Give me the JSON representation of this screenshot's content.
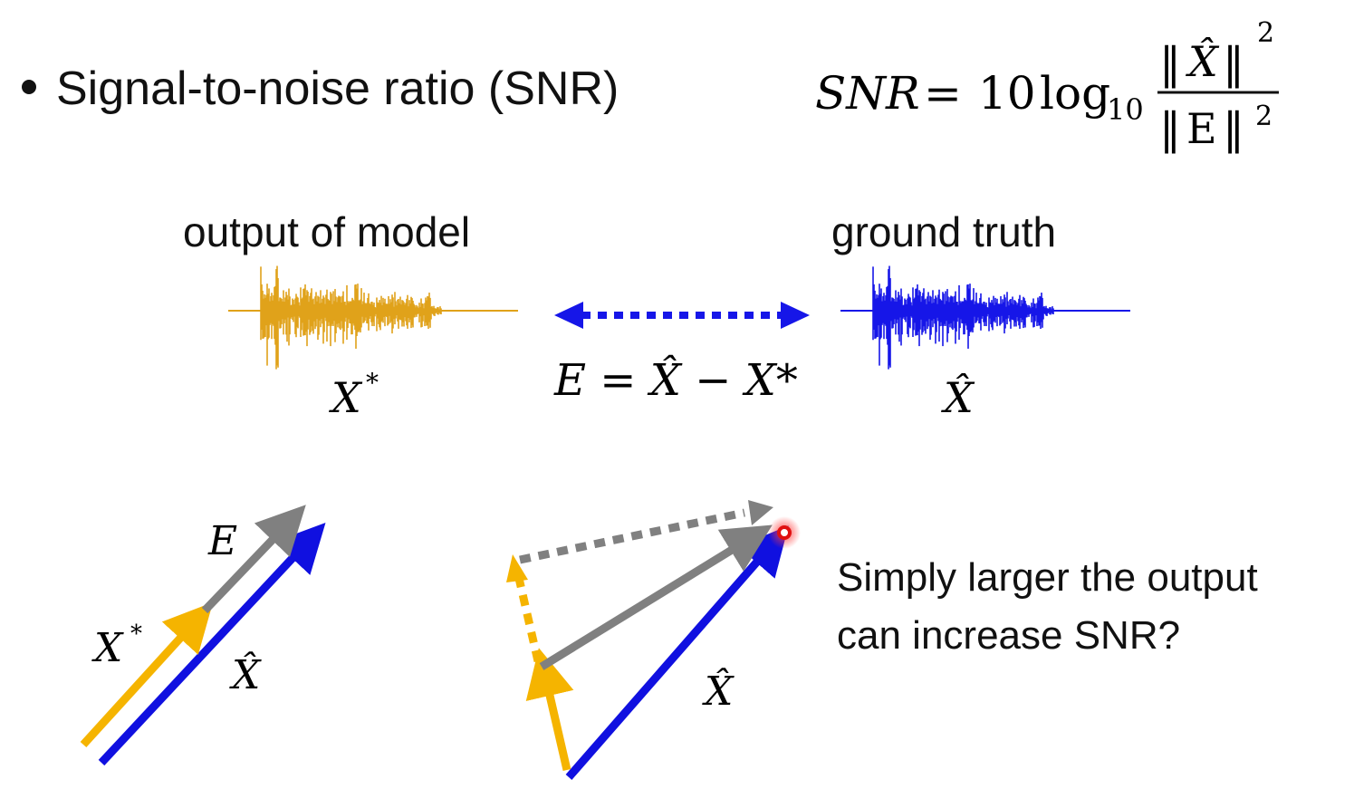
{
  "bullet": {
    "text": "Signal-to-noise ratio (SNR)"
  },
  "formula": {
    "lhs": "SNR",
    "equals": "=",
    "coefficient": "10",
    "log": "log",
    "log_base": "10",
    "numerator": "X̂",
    "denominator": "E",
    "norm": "‖",
    "exponent": "2"
  },
  "waveforms": {
    "output_label": "output of model",
    "truth_label": "ground truth",
    "output_symbol": "X",
    "output_symbol_sup": "*",
    "truth_symbol": "X̂",
    "error_equation": "E = X̂ − X*",
    "output_color": "#e0a21a",
    "truth_color": "#1616e8"
  },
  "vectors": {
    "left_error_label": "E",
    "left_output_label": "X",
    "left_output_sup": "*",
    "left_truth_label": "X̂",
    "right_truth_label": "X̂",
    "output_color": "#f5b400",
    "truth_color": "#1010e0",
    "error_color": "#808080"
  },
  "question": {
    "line1": "Simply larger the output",
    "line2": "can increase SNR?"
  }
}
